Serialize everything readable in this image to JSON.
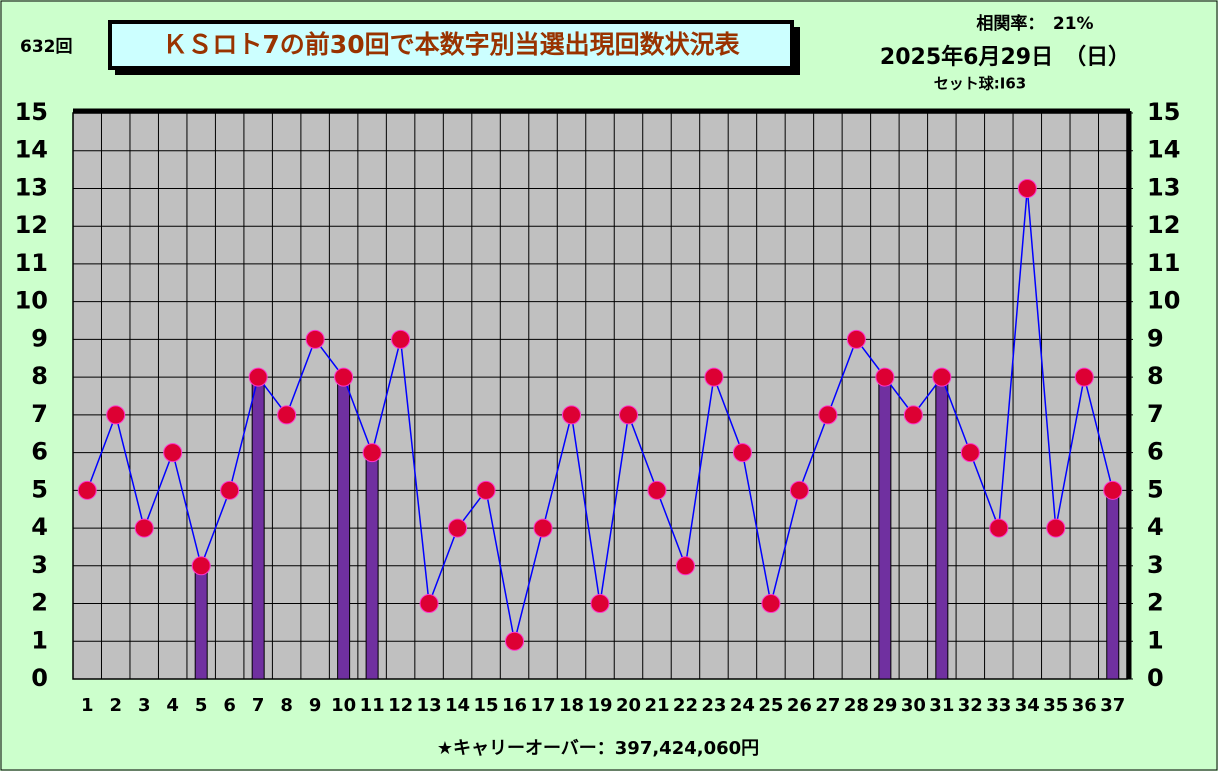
{
  "chart_data": {
    "type": "combo",
    "title": "ＫＳロト7の前30回で本数字別当選出現回数状況表",
    "draw_number": "632回",
    "correlation": "相関率：　21%",
    "date": "2025年6月29日　（日）",
    "set_ball": "セット球:I63",
    "carryover": "★キャリーオーバー：397,424,060円",
    "categories": [
      1,
      2,
      3,
      4,
      5,
      6,
      7,
      8,
      9,
      10,
      11,
      12,
      13,
      14,
      15,
      16,
      17,
      18,
      19,
      20,
      21,
      22,
      23,
      24,
      25,
      26,
      27,
      28,
      29,
      30,
      31,
      32,
      33,
      34,
      35,
      36,
      37
    ],
    "series": [
      {
        "type": "bar",
        "color": "#7030a0",
        "values": [
          null,
          null,
          null,
          null,
          3,
          null,
          8,
          null,
          null,
          8,
          6,
          null,
          null,
          null,
          null,
          null,
          null,
          null,
          null,
          null,
          null,
          null,
          null,
          null,
          null,
          null,
          null,
          null,
          8,
          null,
          8,
          null,
          null,
          null,
          null,
          null,
          5
        ]
      },
      {
        "type": "line",
        "color": "#0000ff",
        "marker_color": "#dd0033",
        "values": [
          5,
          7,
          4,
          6,
          3,
          5,
          8,
          7,
          9,
          8,
          6,
          9,
          2,
          4,
          5,
          1,
          4,
          7,
          2,
          7,
          5,
          3,
          8,
          6,
          2,
          5,
          7,
          9,
          8,
          7,
          8,
          6,
          4,
          13,
          4,
          8,
          5
        ]
      }
    ],
    "ylim": [
      0,
      15
    ],
    "yticks": [
      0,
      1,
      2,
      3,
      4,
      5,
      6,
      7,
      8,
      9,
      10,
      11,
      12,
      13,
      14,
      15
    ],
    "y2lim": [
      0,
      15
    ],
    "y2ticks": [
      0,
      1,
      2,
      3,
      4,
      5,
      6,
      7,
      8,
      9,
      10,
      11,
      12,
      13,
      14,
      15
    ],
    "grid": true
  }
}
